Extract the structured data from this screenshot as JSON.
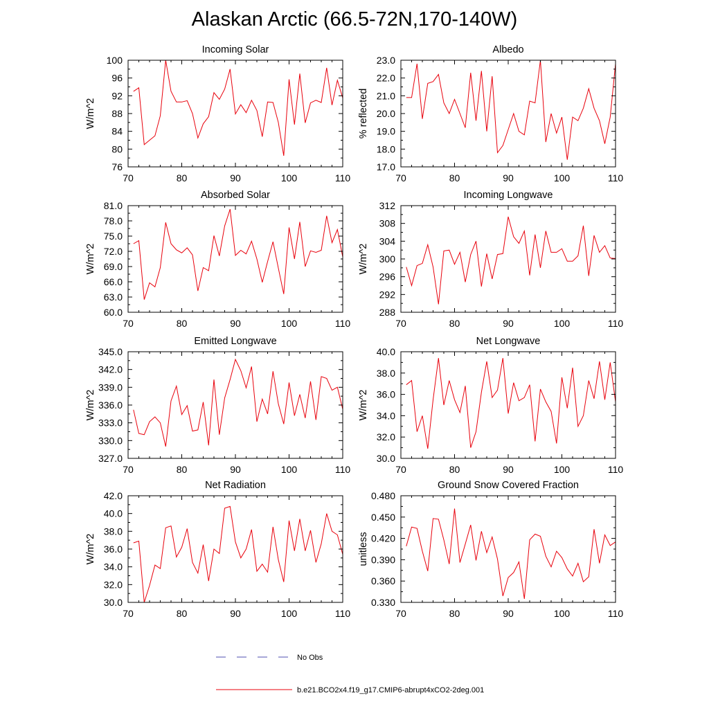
{
  "title": "Alaskan Arctic (66.5-72N,170-140W)",
  "legend": {
    "no_obs_label": "No Obs",
    "no_obs_color": "#4f4fb0",
    "model_label": "b.e21.BCO2x4.f19_g17.CMIP6-abrupt4xCO2-2deg.001",
    "model_color": "#e8000b"
  },
  "chart_data": [
    {
      "type": "line",
      "title": "Incoming Solar",
      "ylabel": "W/m^2",
      "xlim": [
        70,
        110
      ],
      "ylim": [
        76,
        100
      ],
      "xticks": [
        70,
        80,
        90,
        100,
        110
      ],
      "yticks": [
        "76",
        "80",
        "84",
        "88",
        "92",
        "96",
        "100"
      ],
      "x": [
        71,
        72,
        73,
        74,
        75,
        76,
        77,
        78,
        79,
        80,
        81,
        82,
        83,
        84,
        85,
        86,
        87,
        88,
        89,
        90,
        91,
        92,
        93,
        94,
        95,
        96,
        97,
        98,
        99,
        100,
        101,
        102,
        103,
        104,
        105,
        106,
        107,
        108,
        109,
        110
      ],
      "values": [
        93.0,
        93.8,
        81.0,
        82.0,
        83.0,
        87.5,
        100.0,
        93.0,
        90.6,
        90.6,
        90.9,
        88.0,
        82.5,
        85.7,
        87.3,
        92.7,
        91.2,
        93.5,
        98.0,
        87.9,
        90.0,
        88.2,
        91.0,
        88.7,
        82.8,
        90.6,
        90.5,
        86.0,
        78.5,
        95.7,
        85.5,
        97.0,
        85.9,
        90.4,
        91.0,
        90.5,
        98.3,
        89.9,
        95.5,
        91.5
      ]
    },
    {
      "type": "line",
      "title": "Albedo",
      "ylabel": "% reflected",
      "xlim": [
        70,
        110
      ],
      "ylim": [
        17.0,
        23.0
      ],
      "xticks": [
        70,
        80,
        90,
        100,
        110
      ],
      "yticks": [
        "17.0",
        "18.0",
        "19.0",
        "20.0",
        "21.0",
        "22.0",
        "23.0"
      ],
      "x": [
        71,
        72,
        73,
        74,
        75,
        76,
        77,
        78,
        79,
        80,
        81,
        82,
        83,
        84,
        85,
        86,
        87,
        88,
        89,
        90,
        91,
        92,
        93,
        94,
        95,
        96,
        97,
        98,
        99,
        100,
        101,
        102,
        103,
        104,
        105,
        106,
        107,
        108,
        109,
        110
      ],
      "values": [
        20.9,
        20.9,
        22.8,
        19.7,
        21.7,
        21.8,
        22.2,
        20.6,
        20.0,
        20.8,
        20.0,
        19.2,
        22.3,
        19.6,
        22.4,
        19.0,
        22.1,
        17.8,
        18.2,
        19.1,
        20.0,
        19.0,
        18.8,
        20.7,
        20.6,
        23.0,
        18.4,
        20.0,
        18.9,
        19.8,
        17.4,
        19.8,
        19.6,
        20.3,
        21.4,
        20.3,
        19.6,
        18.3,
        19.8,
        22.8
      ]
    },
    {
      "type": "line",
      "title": "Absorbed Solar",
      "ylabel": "W/m^2",
      "xlim": [
        70,
        110
      ],
      "ylim": [
        60.0,
        81.0
      ],
      "xticks": [
        70,
        80,
        90,
        100,
        110
      ],
      "yticks": [
        "60.0",
        "63.0",
        "66.0",
        "69.0",
        "72.0",
        "75.0",
        "78.0",
        "81.0"
      ],
      "x": [
        71,
        72,
        73,
        74,
        75,
        76,
        77,
        78,
        79,
        80,
        81,
        82,
        83,
        84,
        85,
        86,
        87,
        88,
        89,
        90,
        91,
        92,
        93,
        94,
        95,
        96,
        97,
        98,
        99,
        100,
        101,
        102,
        103,
        104,
        105,
        106,
        107,
        108,
        109,
        110
      ],
      "values": [
        73.5,
        74.1,
        62.5,
        65.8,
        65.0,
        68.8,
        77.7,
        73.5,
        72.3,
        71.7,
        72.7,
        71.3,
        64.2,
        68.8,
        68.2,
        75.1,
        71.1,
        77.0,
        80.3,
        71.2,
        72.2,
        71.5,
        74.0,
        70.5,
        65.9,
        70.0,
        73.9,
        68.7,
        63.6,
        76.7,
        70.5,
        77.8,
        69.0,
        72.1,
        71.8,
        72.2,
        79.0,
        73.7,
        76.3,
        70.9
      ]
    },
    {
      "type": "line",
      "title": "Incoming Longwave",
      "ylabel": "W/m^2",
      "xlim": [
        70,
        110
      ],
      "ylim": [
        288,
        312
      ],
      "xticks": [
        70,
        80,
        90,
        100,
        110
      ],
      "yticks": [
        "288",
        "292",
        "296",
        "300",
        "304",
        "308",
        "312"
      ],
      "x": [
        71,
        72,
        73,
        74,
        75,
        76,
        77,
        78,
        79,
        80,
        81,
        82,
        83,
        84,
        85,
        86,
        87,
        88,
        89,
        90,
        91,
        92,
        93,
        94,
        95,
        96,
        97,
        98,
        99,
        100,
        101,
        102,
        103,
        104,
        105,
        106,
        107,
        108,
        109,
        110
      ],
      "values": [
        298.2,
        294.0,
        298.5,
        299.0,
        303.2,
        298.2,
        289.8,
        301.8,
        302.0,
        298.8,
        301.5,
        294.8,
        301.0,
        304.0,
        293.8,
        301.2,
        295.5,
        301.0,
        301.2,
        309.5,
        305.0,
        303.5,
        306.3,
        296.3,
        305.5,
        298.0,
        306.3,
        301.5,
        301.5,
        302.3,
        299.5,
        299.5,
        300.7,
        307.5,
        296.2,
        305.3,
        301.5,
        303.0,
        300.2,
        300.1
      ]
    },
    {
      "type": "line",
      "title": "Emitted Longwave",
      "ylabel": "W/m^2",
      "xlim": [
        70,
        110
      ],
      "ylim": [
        327.0,
        345.0
      ],
      "xticks": [
        70,
        80,
        90,
        100,
        110
      ],
      "yticks": [
        "327.0",
        "330.0",
        "333.0",
        "336.0",
        "339.0",
        "342.0",
        "345.0"
      ],
      "x": [
        71,
        72,
        73,
        74,
        75,
        76,
        77,
        78,
        79,
        80,
        81,
        82,
        83,
        84,
        85,
        86,
        87,
        88,
        89,
        90,
        91,
        92,
        93,
        94,
        95,
        96,
        97,
        98,
        99,
        100,
        101,
        102,
        103,
        104,
        105,
        106,
        107,
        108,
        109,
        110
      ],
      "values": [
        335.2,
        331.2,
        331.0,
        333.2,
        334.0,
        333.0,
        329.0,
        336.7,
        339.2,
        334.4,
        335.9,
        331.6,
        331.8,
        336.5,
        329.2,
        340.3,
        331.0,
        337.2,
        340.3,
        343.7,
        341.8,
        338.9,
        342.5,
        333.2,
        337.0,
        334.5,
        341.7,
        336.2,
        332.8,
        339.8,
        334.2,
        337.8,
        333.8,
        340.0,
        333.5,
        340.8,
        340.5,
        338.5,
        339.0,
        335.3
      ]
    },
    {
      "type": "line",
      "title": "Net Longwave",
      "ylabel": "W/m^2",
      "xlim": [
        70,
        110
      ],
      "ylim": [
        30.0,
        40.0
      ],
      "xticks": [
        70,
        80,
        90,
        100,
        110
      ],
      "yticks": [
        "30.0",
        "32.0",
        "34.0",
        "36.0",
        "38.0",
        "40.0"
      ],
      "x": [
        71,
        72,
        73,
        74,
        75,
        76,
        77,
        78,
        79,
        80,
        81,
        82,
        83,
        84,
        85,
        86,
        87,
        88,
        89,
        90,
        91,
        92,
        93,
        94,
        95,
        96,
        97,
        98,
        99,
        100,
        101,
        102,
        103,
        104,
        105,
        106,
        107,
        108,
        109,
        110
      ],
      "values": [
        36.9,
        37.3,
        32.5,
        34.0,
        30.9,
        35.5,
        39.4,
        35.0,
        37.3,
        35.5,
        34.3,
        36.8,
        31.0,
        32.5,
        36.2,
        39.1,
        35.7,
        36.4,
        39.4,
        34.2,
        37.1,
        35.4,
        35.7,
        36.9,
        31.6,
        36.5,
        35.3,
        34.4,
        31.4,
        37.6,
        34.7,
        38.5,
        33.0,
        34.0,
        37.3,
        35.6,
        39.1,
        35.5,
        39.0,
        35.3
      ]
    },
    {
      "type": "line",
      "title": "Net Radiation",
      "ylabel": "W/m^2",
      "xlim": [
        70,
        110
      ],
      "ylim": [
        30.0,
        42.0
      ],
      "xticks": [
        70,
        80,
        90,
        100,
        110
      ],
      "yticks": [
        "30.0",
        "32.0",
        "34.0",
        "36.0",
        "38.0",
        "40.0",
        "42.0"
      ],
      "x": [
        71,
        72,
        73,
        74,
        75,
        76,
        77,
        78,
        79,
        80,
        81,
        82,
        83,
        84,
        85,
        86,
        87,
        88,
        89,
        90,
        91,
        92,
        93,
        94,
        95,
        96,
        97,
        98,
        99,
        100,
        101,
        102,
        103,
        104,
        105,
        106,
        107,
        108,
        109,
        110
      ],
      "values": [
        36.7,
        36.9,
        30.0,
        31.9,
        34.2,
        33.8,
        38.4,
        38.6,
        35.1,
        36.2,
        38.3,
        34.5,
        33.3,
        36.5,
        32.4,
        36.0,
        35.5,
        40.6,
        40.8,
        36.8,
        35.0,
        36.0,
        38.2,
        33.5,
        34.3,
        33.4,
        38.5,
        34.8,
        32.3,
        39.2,
        35.8,
        39.4,
        35.8,
        38.1,
        34.5,
        36.6,
        40.0,
        38.0,
        37.6,
        35.4
      ]
    },
    {
      "type": "line",
      "title": "Ground Snow Covered Fraction",
      "ylabel": "unitless",
      "xlim": [
        70,
        110
      ],
      "ylim": [
        0.33,
        0.48
      ],
      "xticks": [
        70,
        80,
        90,
        100,
        110
      ],
      "yticks": [
        "0.330",
        "0.360",
        "0.390",
        "0.420",
        "0.450",
        "0.480"
      ],
      "x": [
        71,
        72,
        73,
        74,
        75,
        76,
        77,
        78,
        79,
        80,
        81,
        82,
        83,
        84,
        85,
        86,
        87,
        88,
        89,
        90,
        91,
        92,
        93,
        94,
        95,
        96,
        97,
        98,
        99,
        100,
        101,
        102,
        103,
        104,
        105,
        106,
        107,
        108,
        109,
        110
      ],
      "values": [
        0.409,
        0.436,
        0.434,
        0.402,
        0.374,
        0.448,
        0.447,
        0.418,
        0.384,
        0.462,
        0.386,
        0.412,
        0.439,
        0.389,
        0.43,
        0.4,
        0.422,
        0.391,
        0.339,
        0.365,
        0.372,
        0.387,
        0.335,
        0.418,
        0.426,
        0.423,
        0.395,
        0.38,
        0.402,
        0.393,
        0.377,
        0.367,
        0.385,
        0.359,
        0.366,
        0.433,
        0.385,
        0.425,
        0.41,
        0.415
      ]
    }
  ]
}
